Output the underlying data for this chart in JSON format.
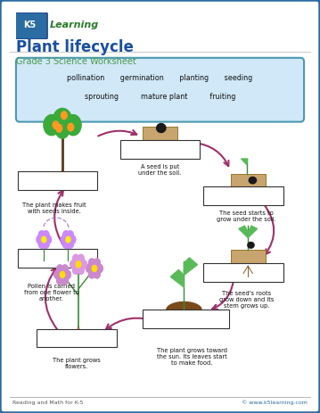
{
  "title": "Plant lifecycle",
  "subtitle": "Grade 3 Science Worksheet",
  "footer_left": "Reading and Math for K-5",
  "footer_right": "© www.k5learning.com",
  "border_color": "#2B6CA3",
  "title_color": "#1a4fa0",
  "subtitle_color": "#4a9a4a",
  "bg_color": "#ffffff",
  "vocab_box_color": "#d0e8f8",
  "vocab_border_color": "#4a9ab0",
  "arrow_color": "#a0306a",
  "box_border": "#333333"
}
